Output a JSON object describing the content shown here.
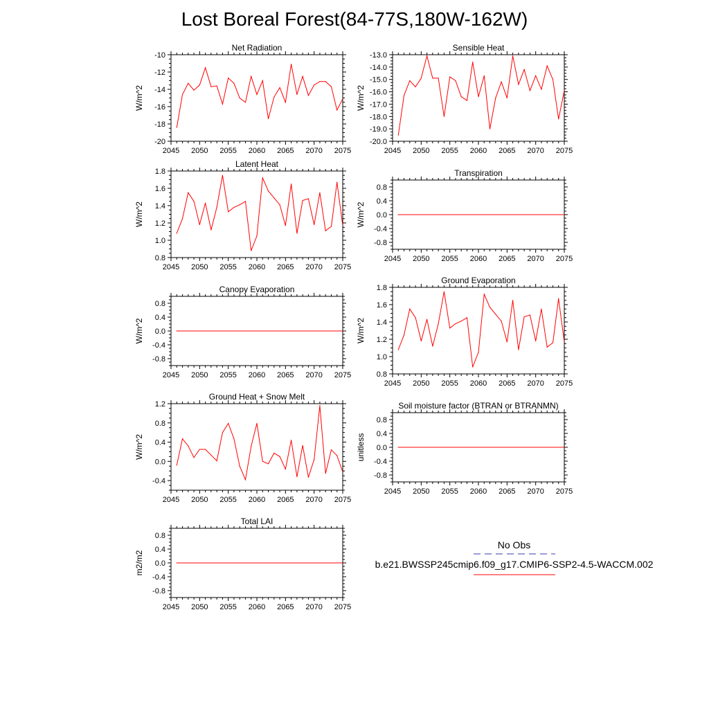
{
  "figure": {
    "title": "Lost Boreal Forest(84-77S,180W-162W)"
  },
  "legend": {
    "obs_label": "No Obs",
    "obs_color": "#3a3ab0",
    "case_label": "b.e21.BWSSP245cmip6.f09_g17.CMIP6-SSP2-4.5-WACCM.002",
    "case_color": "#ff0000"
  },
  "chart_data": [
    {
      "type": "line",
      "title": "Net Radiation",
      "ylabel": "W/m^2",
      "xlim": [
        2045,
        2075
      ],
      "ylim": [
        -20,
        -10
      ],
      "xticks": [
        "2045",
        "2050",
        "2055",
        "2060",
        "2065",
        "2070",
        "2075"
      ],
      "yticks": [
        "-20",
        "-18",
        "-16",
        "-14",
        "-12",
        "-10"
      ],
      "x": [
        2046,
        2047,
        2048,
        2049,
        2050,
        2051,
        2052,
        2053,
        2054,
        2055,
        2056,
        2057,
        2058,
        2059,
        2060,
        2061,
        2062,
        2063,
        2064,
        2065,
        2066,
        2067,
        2068,
        2069,
        2070,
        2071,
        2072,
        2073,
        2074,
        2075
      ],
      "y": [
        -18.4,
        -14.6,
        -13.3,
        -14.1,
        -13.5,
        -11.5,
        -13.7,
        -13.6,
        -15.7,
        -12.7,
        -13.3,
        -15.0,
        -15.5,
        -12.5,
        -14.6,
        -13.0,
        -17.4,
        -14.9,
        -13.8,
        -15.5,
        -11.1,
        -14.6,
        -12.5,
        -14.7,
        -13.5,
        -13.1,
        -13.1,
        -13.7,
        -16.4,
        -15.1
      ],
      "color": "#ff0000"
    },
    {
      "type": "line",
      "title": "Sensible Heat",
      "ylabel": "W/m^2",
      "xlim": [
        2045,
        2075
      ],
      "ylim": [
        -20,
        -13
      ],
      "xticks": [
        "2045",
        "2050",
        "2055",
        "2060",
        "2065",
        "2070",
        "2075"
      ],
      "yticks": [
        "-20.0",
        "-19.0",
        "-18.0",
        "-17.0",
        "-16.0",
        "-15.0",
        "-14.0",
        "-13.0"
      ],
      "x": [
        2046,
        2047,
        2048,
        2049,
        2050,
        2051,
        2052,
        2053,
        2054,
        2055,
        2056,
        2057,
        2058,
        2059,
        2060,
        2061,
        2062,
        2063,
        2064,
        2065,
        2066,
        2067,
        2068,
        2069,
        2070,
        2071,
        2072,
        2073,
        2074,
        2075
      ],
      "y": [
        -19.5,
        -16.3,
        -15.1,
        -15.6,
        -14.9,
        -13.1,
        -14.9,
        -14.9,
        -18.0,
        -14.8,
        -15.1,
        -16.4,
        -16.7,
        -13.6,
        -16.4,
        -14.7,
        -19.0,
        -16.5,
        -15.2,
        -16.5,
        -13.1,
        -15.4,
        -14.2,
        -15.9,
        -14.7,
        -15.8,
        -13.9,
        -15.0,
        -18.2,
        -15.9
      ],
      "color": "#ff0000"
    },
    {
      "type": "line",
      "title": "Latent Heat",
      "ylabel": "W/m^2",
      "xlim": [
        2045,
        2075
      ],
      "ylim": [
        0.8,
        1.8
      ],
      "xticks": [
        "2045",
        "2050",
        "2055",
        "2060",
        "2065",
        "2070",
        "2075"
      ],
      "yticks": [
        "0.8",
        "1.0",
        "1.2",
        "1.4",
        "1.6",
        "1.8"
      ],
      "x": [
        2046,
        2047,
        2048,
        2049,
        2050,
        2051,
        2052,
        2053,
        2054,
        2055,
        2056,
        2057,
        2058,
        2059,
        2060,
        2061,
        2062,
        2063,
        2064,
        2065,
        2066,
        2067,
        2068,
        2069,
        2070,
        2071,
        2072,
        2073,
        2074,
        2075
      ],
      "y": [
        1.08,
        1.25,
        1.55,
        1.45,
        1.18,
        1.43,
        1.12,
        1.38,
        1.75,
        1.33,
        1.38,
        1.41,
        1.45,
        0.88,
        1.05,
        1.72,
        1.57,
        1.49,
        1.41,
        1.17,
        1.65,
        1.08,
        1.46,
        1.48,
        1.18,
        1.55,
        1.11,
        1.16,
        1.67,
        1.17
      ],
      "color": "#ff0000"
    },
    {
      "type": "line",
      "title": "Transpiration",
      "ylabel": "W/m^2",
      "xlim": [
        2045,
        2075
      ],
      "ylim": [
        -1,
        1
      ],
      "xticks": [
        "2045",
        "2050",
        "2055",
        "2060",
        "2065",
        "2070",
        "2075"
      ],
      "yticks": [
        "-0.8",
        "-0.4",
        "0.0",
        "0.4",
        "0.8"
      ],
      "x": [
        2046,
        2075
      ],
      "y": [
        0,
        0
      ],
      "color": "#ff0000"
    },
    {
      "type": "line",
      "title": "Canopy Evaporation",
      "ylabel": "W/m^2",
      "xlim": [
        2045,
        2075
      ],
      "ylim": [
        -1,
        1
      ],
      "xticks": [
        "2045",
        "2050",
        "2055",
        "2060",
        "2065",
        "2070",
        "2075"
      ],
      "yticks": [
        "-0.8",
        "-0.4",
        "0.0",
        "0.4",
        "0.8"
      ],
      "x": [
        2046,
        2075
      ],
      "y": [
        0,
        0
      ],
      "color": "#ff0000"
    },
    {
      "type": "line",
      "title": "Ground Evaporation",
      "ylabel": "W/m^2",
      "xlim": [
        2045,
        2075
      ],
      "ylim": [
        0.8,
        1.8
      ],
      "xticks": [
        "2045",
        "2050",
        "2055",
        "2060",
        "2065",
        "2070",
        "2075"
      ],
      "yticks": [
        "0.8",
        "1.0",
        "1.2",
        "1.4",
        "1.6",
        "1.8"
      ],
      "x": [
        2046,
        2047,
        2048,
        2049,
        2050,
        2051,
        2052,
        2053,
        2054,
        2055,
        2056,
        2057,
        2058,
        2059,
        2060,
        2061,
        2062,
        2063,
        2064,
        2065,
        2066,
        2067,
        2068,
        2069,
        2070,
        2071,
        2072,
        2073,
        2074,
        2075
      ],
      "y": [
        1.08,
        1.25,
        1.55,
        1.45,
        1.18,
        1.43,
        1.12,
        1.38,
        1.75,
        1.33,
        1.38,
        1.41,
        1.45,
        0.88,
        1.05,
        1.72,
        1.57,
        1.49,
        1.41,
        1.17,
        1.65,
        1.08,
        1.46,
        1.48,
        1.18,
        1.55,
        1.11,
        1.16,
        1.67,
        1.17
      ],
      "color": "#ff0000"
    },
    {
      "type": "line",
      "title": "Ground Heat + Snow Melt",
      "ylabel": "W/m^2",
      "xlim": [
        2045,
        2075
      ],
      "ylim": [
        -0.6,
        1.2
      ],
      "xticks": [
        "2045",
        "2050",
        "2055",
        "2060",
        "2065",
        "2070",
        "2075"
      ],
      "yticks": [
        "-0.4",
        "0.0",
        "0.4",
        "0.8",
        "1.2"
      ],
      "x": [
        2046,
        2047,
        2048,
        2049,
        2050,
        2051,
        2052,
        2053,
        2054,
        2055,
        2056,
        2057,
        2058,
        2059,
        2060,
        2061,
        2062,
        2063,
        2064,
        2065,
        2066,
        2067,
        2068,
        2069,
        2070,
        2071,
        2072,
        2073,
        2074,
        2075
      ],
      "y": [
        -0.08,
        0.47,
        0.32,
        0.08,
        0.25,
        0.25,
        0.13,
        0.01,
        0.6,
        0.79,
        0.47,
        -0.1,
        -0.38,
        0.31,
        0.79,
        0.0,
        -0.05,
        0.17,
        0.1,
        -0.16,
        0.44,
        -0.32,
        0.33,
        -0.33,
        0.04,
        1.16,
        -0.25,
        0.24,
        0.12,
        -0.22
      ],
      "color": "#ff0000"
    },
    {
      "type": "line",
      "title": "Soil moisture factor (BTRAN or BTRANMN)",
      "ylabel": "unitless",
      "xlim": [
        2045,
        2075
      ],
      "ylim": [
        -1,
        1
      ],
      "xticks": [
        "2045",
        "2050",
        "2055",
        "2060",
        "2065",
        "2070",
        "2075"
      ],
      "yticks": [
        "-0.8",
        "-0.4",
        "0.0",
        "0.4",
        "0.8"
      ],
      "x": [
        2046,
        2075
      ],
      "y": [
        0,
        0
      ],
      "color": "#ff0000"
    },
    {
      "type": "line",
      "title": "Total LAI",
      "ylabel": "m2/m2",
      "xlim": [
        2045,
        2075
      ],
      "ylim": [
        -1,
        1
      ],
      "xticks": [
        "2045",
        "2050",
        "2055",
        "2060",
        "2065",
        "2070",
        "2075"
      ],
      "yticks": [
        "-0.8",
        "-0.4",
        "0.0",
        "0.4",
        "0.8"
      ],
      "x": [
        2046,
        2075
      ],
      "y": [
        0,
        0
      ],
      "color": "#ff0000"
    }
  ]
}
